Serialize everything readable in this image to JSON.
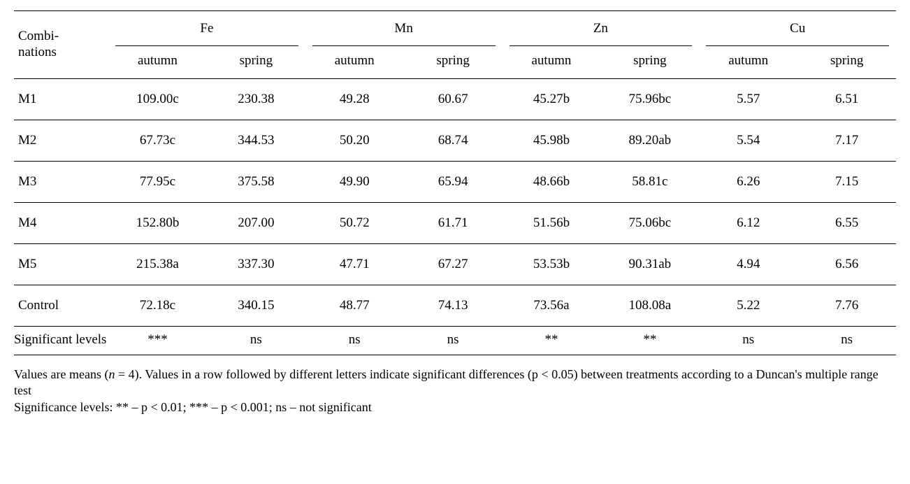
{
  "table": {
    "type": "table",
    "header": {
      "rowLabel": "Combi-\nnations",
      "groups": [
        "Fe",
        "Mn",
        "Zn",
        "Cu"
      ],
      "subcols": [
        "autumn",
        "spring"
      ]
    },
    "rows": [
      {
        "label": "M1",
        "cells": [
          "109.00c",
          "230.38",
          "49.28",
          "60.67",
          "45.27b",
          "75.96bc",
          "5.57",
          "6.51"
        ]
      },
      {
        "label": "M2",
        "cells": [
          "67.73c",
          "344.53",
          "50.20",
          "68.74",
          "45.98b",
          "89.20ab",
          "5.54",
          "7.17"
        ]
      },
      {
        "label": "M3",
        "cells": [
          "77.95c",
          "375.58",
          "49.90",
          "65.94",
          "48.66b",
          "58.81c",
          "6.26",
          "7.15"
        ]
      },
      {
        "label": "M4",
        "cells": [
          "152.80b",
          "207.00",
          "50.72",
          "61.71",
          "51.56b",
          "75.06bc",
          "6.12",
          "6.55"
        ]
      },
      {
        "label": "M5",
        "cells": [
          "215.38a",
          "337.30",
          "47.71",
          "67.27",
          "53.53b",
          "90.31ab",
          "4.94",
          "6.56"
        ]
      },
      {
        "label": "Control",
        "cells": [
          "72.18c",
          "340.15",
          "48.77",
          "74.13",
          "73.56a",
          "108.08a",
          "5.22",
          "7.76"
        ]
      }
    ],
    "sigRow": {
      "label": "Significant levels",
      "cells": [
        "***",
        "ns",
        "ns",
        "ns",
        "**",
        "**",
        "ns",
        "ns"
      ]
    },
    "footnotes": [
      "Values are means (n = 4). Values in a row followed by different letters indicate significant differences (p < 0.05) between treatments according to a Duncan's multiple range test",
      "Significance levels: ** – p < 0.01; *** – p < 0.001; ns – not significant"
    ],
    "colors": {
      "background": "#ffffff",
      "text": "#000000",
      "rule": "#000000"
    },
    "fonts": {
      "family": "Times New Roman",
      "body_size_pt": 14,
      "footnote_size_pt": 13
    }
  }
}
